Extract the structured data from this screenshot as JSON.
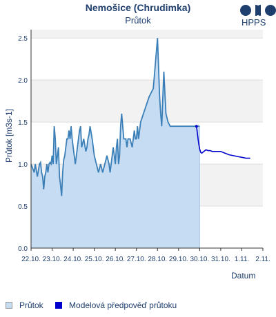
{
  "header": {
    "title": "Nemošice (Chrudimka)",
    "subtitle": "Průtok",
    "logo_text": "HPPS"
  },
  "legend": {
    "items": [
      {
        "label": "Průtok",
        "color": "#c6dcf2",
        "border": "#999999"
      },
      {
        "label": "Modelová předpověď průtoku",
        "color": "#0000cc",
        "border": "#0000cc"
      }
    ]
  },
  "chart_data": {
    "type": "area",
    "title": "Nemošice (Chrudimka)",
    "subtitle": "Průtok",
    "xlabel": "Datum",
    "ylabel": "Průtok [m3s-1]",
    "x_unit": "days (22.10. = 0)",
    "xlim": [
      0,
      11
    ],
    "ylim": [
      0,
      2.6
    ],
    "yticks": [
      0.0,
      0.5,
      1.0,
      1.5,
      2.0,
      2.5
    ],
    "ytick_labels": [
      "0.0",
      "0.5",
      "1.0",
      "1.5",
      "2.0",
      "2.5"
    ],
    "xticks": [
      0,
      1,
      2,
      3,
      4,
      5,
      6,
      7,
      8,
      9,
      10,
      11
    ],
    "xtick_labels": [
      "22.10.",
      "23.10.",
      "24.10.",
      "25.10.",
      "26.10.",
      "27.10.",
      "28.10.",
      "29.10.",
      "30.10.",
      "31.10.",
      "1.11.",
      "2.11."
    ],
    "grid": true,
    "series": [
      {
        "name": "Průtok",
        "color": "#3a7fb8",
        "fill": "#c6dcf2",
        "x": [
          0.0,
          0.15,
          0.2,
          0.3,
          0.4,
          0.45,
          0.5,
          0.55,
          0.6,
          0.65,
          0.7,
          0.75,
          0.8,
          0.85,
          0.9,
          0.95,
          1.0,
          1.05,
          1.1,
          1.15,
          1.2,
          1.25,
          1.3,
          1.35,
          1.4,
          1.45,
          1.5,
          1.55,
          1.6,
          1.65,
          1.7,
          1.75,
          1.8,
          1.85,
          1.9,
          1.95,
          2.0,
          2.05,
          2.1,
          2.15,
          2.2,
          2.25,
          2.3,
          2.35,
          2.4,
          2.5,
          2.6,
          2.65,
          2.7,
          2.75,
          2.8,
          2.9,
          3.0,
          3.1,
          3.2,
          3.3,
          3.4,
          3.5,
          3.6,
          3.7,
          3.75,
          3.8,
          3.85,
          3.9,
          3.95,
          4.0,
          4.05,
          4.1,
          4.15,
          4.2,
          4.25,
          4.3,
          4.35,
          4.4,
          4.45,
          4.5,
          4.55,
          4.6,
          4.7,
          4.8,
          4.85,
          4.9,
          4.95,
          5.0,
          5.05,
          5.1,
          5.2,
          5.4,
          5.6,
          5.8,
          6.0,
          6.1,
          6.15,
          6.2,
          6.3,
          6.4,
          6.5,
          6.6,
          6.7,
          6.75,
          6.8,
          6.85,
          6.9,
          6.95,
          7.0,
          7.05,
          7.1,
          7.15,
          7.2,
          7.3,
          7.4,
          7.5,
          7.6,
          7.7,
          7.8,
          8.0
        ],
        "y": [
          1.0,
          0.9,
          1.0,
          0.85,
          1.0,
          1.02,
          0.9,
          0.85,
          0.7,
          0.85,
          0.9,
          1.0,
          0.9,
          1.0,
          1.02,
          1.0,
          1.1,
          1.0,
          1.45,
          1.3,
          1.0,
          1.1,
          1.2,
          0.85,
          0.75,
          0.62,
          0.9,
          1.05,
          1.1,
          1.2,
          1.3,
          1.3,
          1.4,
          1.3,
          1.45,
          1.3,
          1.2,
          1.1,
          1.0,
          1.1,
          1.2,
          1.3,
          1.4,
          1.45,
          1.2,
          1.3,
          1.15,
          1.2,
          1.3,
          1.35,
          1.45,
          1.3,
          1.1,
          1.0,
          0.9,
          1.0,
          0.9,
          1.0,
          1.1,
          1.0,
          0.9,
          1.0,
          1.1,
          1.2,
          1.1,
          1.0,
          1.2,
          1.3,
          1.0,
          1.1,
          1.45,
          1.6,
          1.45,
          1.3,
          1.3,
          1.3,
          1.2,
          1.3,
          1.3,
          1.2,
          1.3,
          1.4,
          1.3,
          1.3,
          1.45,
          1.3,
          1.5,
          1.65,
          1.8,
          1.9,
          2.5,
          1.8,
          1.6,
          1.45,
          2.1,
          1.6,
          1.5,
          1.45,
          1.45,
          1.45,
          1.45,
          1.45,
          1.45,
          1.45,
          1.45,
          1.45,
          1.45,
          1.45,
          1.45,
          1.45,
          1.45,
          1.45,
          1.45,
          1.45,
          1.45,
          1.45
        ]
      },
      {
        "name": "Modelová předpověď průtoku",
        "color": "#0000cc",
        "x": [
          7.85,
          7.9,
          7.95,
          8.0,
          8.05,
          8.1,
          8.2,
          8.3,
          8.4,
          8.5,
          8.6,
          8.8,
          9.0,
          9.2,
          9.4,
          9.6,
          9.8,
          10.0,
          10.2,
          10.4
        ],
        "y": [
          1.45,
          1.35,
          1.25,
          1.18,
          1.14,
          1.13,
          1.15,
          1.17,
          1.16,
          1.16,
          1.15,
          1.15,
          1.15,
          1.13,
          1.11,
          1.1,
          1.09,
          1.08,
          1.07,
          1.07
        ]
      }
    ]
  }
}
